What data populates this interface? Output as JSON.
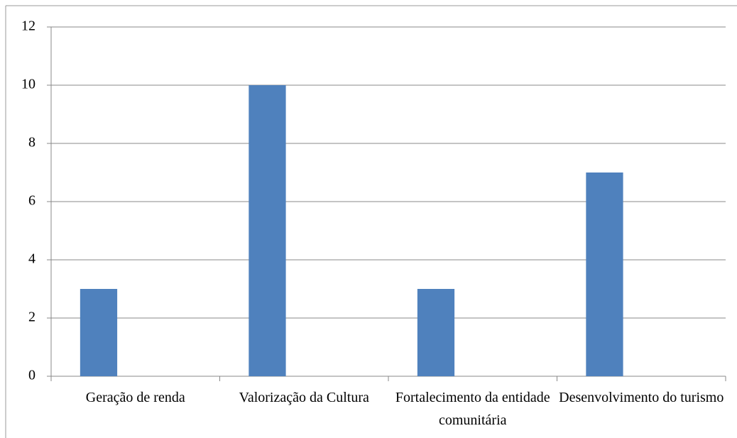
{
  "chart_data": {
    "type": "bar",
    "categories": [
      "Geração de renda",
      "Valorização da Cultura",
      "Fortalecimento da entidade comunitária",
      "Desenvolvimento do turismo"
    ],
    "values": [
      3,
      10,
      3,
      7
    ],
    "color": "#4f81bd",
    "ylim": [
      0,
      12
    ],
    "yticks": [
      0,
      2,
      4,
      6,
      8,
      10,
      12
    ],
    "grid": true
  }
}
